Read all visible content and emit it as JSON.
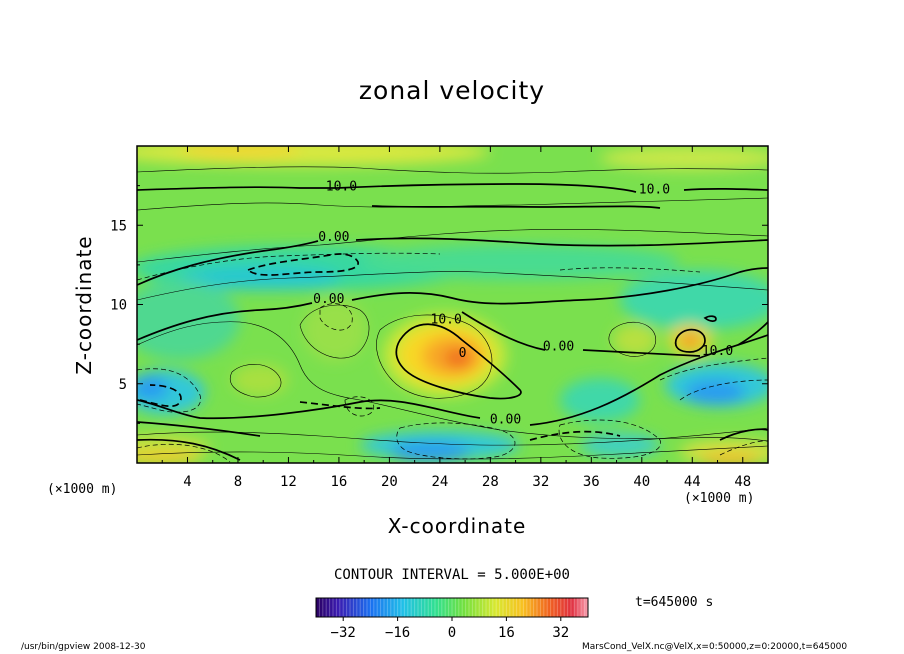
{
  "chart_data": {
    "type": "heatmap",
    "title": "zonal velocity",
    "xlabel": "X-coordinate",
    "ylabel": "Z-coordinate",
    "x_unit": "(×1000 m)",
    "x_unit_right": "(×1000 m)",
    "xlim": [
      0,
      50
    ],
    "ylim": [
      0,
      20
    ],
    "xticks": [
      4,
      8,
      12,
      16,
      20,
      24,
      28,
      32,
      36,
      40,
      44,
      48
    ],
    "yticks": [
      5,
      10,
      15
    ],
    "contour_interval_text": "CONTOUR INTERVAL = 5.000E+00",
    "contour_labels": [
      {
        "text": "10.0",
        "x": 16.2,
        "z": 17.2
      },
      {
        "text": "10.0",
        "x": 41.0,
        "z": 17.0
      },
      {
        "text": "0.00",
        "x": 15.6,
        "z": 14.0
      },
      {
        "text": "0.00",
        "x": 15.2,
        "z": 10.1
      },
      {
        "text": "10.0",
        "x": 24.5,
        "z": 8.8
      },
      {
        "text": "0",
        "x": 25.8,
        "z": 6.7
      },
      {
        "text": "0.00",
        "x": 33.4,
        "z": 7.1
      },
      {
        "text": "10.0",
        "x": 46.0,
        "z": 6.8
      },
      {
        "text": "0.00",
        "x": 29.2,
        "z": 2.5
      }
    ],
    "colorbar": {
      "ticks": [
        -32,
        -16,
        0,
        16,
        32
      ],
      "tick_labels": [
        "−32",
        "−16",
        "0",
        "16",
        "32"
      ],
      "range": [
        -40,
        40
      ]
    },
    "time_label": "t=645000 s",
    "colors": {
      "background_field": "#77e04a",
      "positive_max": "#f05a1a",
      "negative_max": "#1f8ff0"
    }
  },
  "footer": {
    "left": "/usr/bin/gpview   2008-12-30",
    "right": "MarsCond_VelX.nc@VelX,x=0:50000,z=0:20000,t=645000"
  }
}
